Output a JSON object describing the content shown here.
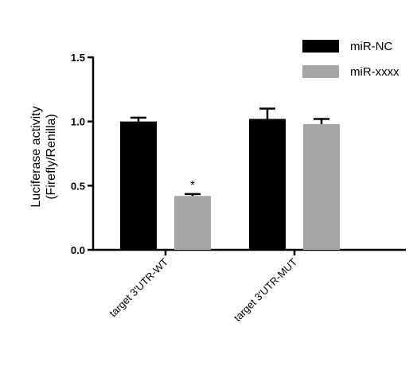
{
  "chart_data": {
    "type": "bar",
    "categories": [
      "target 3'UTR-WT",
      "target 3'UTR-MUT"
    ],
    "series": [
      {
        "name": "miR-NC",
        "color": "#000000",
        "values": [
          1.0,
          1.02
        ],
        "errors": [
          0.03,
          0.08
        ]
      },
      {
        "name": "miR-xxxx",
        "color": "#a6a6a6",
        "values": [
          0.42,
          0.98
        ],
        "errors": [
          0.015,
          0.04
        ]
      }
    ],
    "title": "",
    "xlabel": "",
    "ylabel": "Luciferase activity",
    "ylabel_line2": "(Firefly/Renilla)",
    "ylim": [
      0,
      1.5
    ],
    "yticks": [
      "0.0",
      "0.5",
      "1.0",
      "1.5"
    ],
    "ytick_values": [
      0,
      0.5,
      1.0,
      1.5
    ],
    "annotations": [
      {
        "text": "*",
        "category_index": 0,
        "series_index": 1
      }
    ],
    "legend_position": "top-right",
    "grid": false
  }
}
